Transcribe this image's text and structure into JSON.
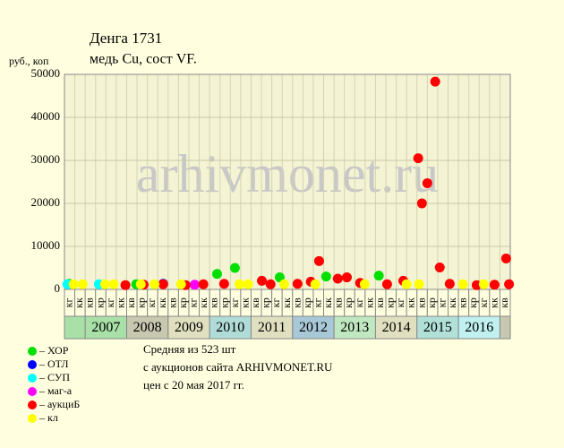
{
  "chart_data": {
    "type": "scatter",
    "title": "Денга 1731",
    "subtitle": "медь Cu, сост VF.",
    "y_label": "руб., коп",
    "watermark": "arhivmonet.ru",
    "xlim": [
      2006.5,
      2017.25
    ],
    "ylim": [
      0,
      50000
    ],
    "yticks": [
      0,
      10000,
      20000,
      30000,
      40000,
      50000
    ],
    "year_ticks": [
      2007,
      2008,
      2009,
      2010,
      2011,
      2012,
      2013,
      2014,
      2015,
      2016
    ],
    "quarter_labels": [
      "кв",
      "кр",
      "кг",
      "кк"
    ],
    "grid": true,
    "series": [
      {
        "name": "– ХОР",
        "color": "#00e000",
        "x": [
          2006.61,
          2008.23,
          2010.18,
          2010.61,
          2011.69,
          2012.81,
          2014.08
        ],
        "values": [
          1300,
          1200,
          3600,
          5000,
          2800,
          3000,
          3200
        ]
      },
      {
        "name": "– ОТЛ",
        "color": "#0000ff",
        "x": [
          2008.88
        ],
        "values": [
          1300
        ]
      },
      {
        "name": "– СУП",
        "color": "#00ffff",
        "x": [
          2006.57,
          2007.33
        ],
        "values": [
          1200,
          1200
        ]
      },
      {
        "name": "– маг-а",
        "color": "#ff00ff",
        "x": [
          2009.64
        ],
        "values": [
          1100
        ]
      },
      {
        "name": "– аукциБ",
        "color": "#ff0000",
        "x": [
          2007.97,
          2008.41,
          2008.88,
          2009.42,
          2009.85,
          2010.35,
          2011.26,
          2011.47,
          2012.12,
          2012.44,
          2012.64,
          2013.09,
          2013.31,
          2013.63,
          2014.28,
          2014.67,
          2015.03,
          2015.12,
          2015.25,
          2015.44,
          2015.55,
          2015.79,
          2016.44,
          2016.87,
          2017.15,
          2017.22
        ],
        "values": [
          1000,
          1100,
          1200,
          1000,
          1200,
          1300,
          2000,
          1200,
          1300,
          1800,
          6600,
          2500,
          2800,
          1500,
          1200,
          2000,
          30500,
          20000,
          24700,
          48300,
          5100,
          1300,
          1000,
          1100,
          7200,
          1200
        ]
      },
      {
        "name": "– кл",
        "color": "#ffff00",
        "x": [
          2006.72,
          2006.94,
          2007.48,
          2007.69,
          2008.34,
          2008.67,
          2009.31,
          2010.72,
          2010.93,
          2011.8,
          2012.55,
          2013.74,
          2014.75,
          2015.05,
          2016.11,
          2016.61
        ],
        "values": [
          1200,
          1200,
          1200,
          1200,
          1200,
          1200,
          1200,
          1200,
          1200,
          1200,
          1200,
          1200,
          1200,
          1200,
          1200,
          1200
        ]
      }
    ],
    "notes": [
      "Средняя из 523 шт",
      "с аукционов сайта ARHIVMONET.RU",
      "цен с 20 мая 2017 гг."
    ]
  }
}
